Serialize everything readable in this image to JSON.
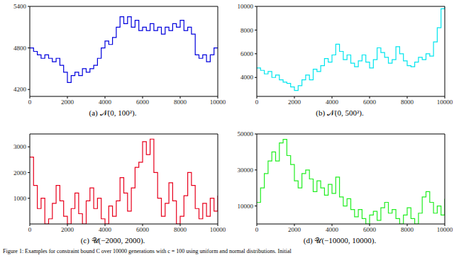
{
  "caption": "Figure 1: Examples for constraint bound C over 10000 generations with c = 100 using uniform and normal distributions. Initial",
  "chart_data": [
    {
      "type": "line",
      "title": "(a) 𝒩(0, 100²).",
      "color": "#0000dd",
      "line_style": "step",
      "xlim": [
        0,
        10000
      ],
      "xticks": [
        0,
        2000,
        4000,
        6000,
        8000,
        10000
      ],
      "ylim": [
        4100,
        5400
      ],
      "yticks": [
        4200,
        4800,
        5400
      ],
      "x": [
        0,
        200,
        400,
        600,
        800,
        1000,
        1200,
        1400,
        1600,
        1800,
        2000,
        2200,
        2400,
        2600,
        2800,
        3000,
        3200,
        3400,
        3600,
        3800,
        4000,
        4200,
        4400,
        4600,
        4800,
        5000,
        5200,
        5400,
        5600,
        5800,
        6000,
        6200,
        6400,
        6600,
        6800,
        7000,
        7200,
        7400,
        7600,
        7800,
        8000,
        8200,
        8400,
        8600,
        8800,
        9000,
        9200,
        9400,
        9600,
        9800,
        10000
      ],
      "values": [
        4800,
        4750,
        4700,
        4650,
        4700,
        4650,
        4600,
        4650,
        4550,
        4450,
        4300,
        4400,
        4450,
        4400,
        4500,
        4450,
        4500,
        4550,
        4650,
        4800,
        4900,
        4850,
        4950,
        5100,
        5250,
        5150,
        5250,
        5100,
        5200,
        5050,
        5100,
        5050,
        5150,
        5050,
        5100,
        5000,
        5100,
        5050,
        5150,
        5100,
        5200,
        5050,
        5100,
        5000,
        4700,
        4650,
        4700,
        4600,
        4700,
        4800,
        4800
      ]
    },
    {
      "type": "line",
      "title": "(b) 𝒩(0, 500²).",
      "color": "#00e5ee",
      "line_style": "step",
      "xlim": [
        0,
        10000
      ],
      "xticks": [
        0,
        2000,
        4000,
        6000,
        8000,
        10000
      ],
      "ylim": [
        2400,
        10000
      ],
      "yticks": [
        4000,
        6000,
        8000,
        10000
      ],
      "x": [
        0,
        200,
        400,
        600,
        800,
        1000,
        1200,
        1400,
        1600,
        1800,
        2000,
        2200,
        2400,
        2600,
        2800,
        3000,
        3200,
        3400,
        3600,
        3800,
        4000,
        4200,
        4400,
        4600,
        4800,
        5000,
        5200,
        5400,
        5600,
        5800,
        6000,
        6200,
        6400,
        6600,
        6800,
        7000,
        7200,
        7400,
        7600,
        7800,
        8000,
        8200,
        8400,
        8600,
        8800,
        9000,
        9200,
        9400,
        9600,
        9800,
        10000
      ],
      "values": [
        4800,
        4600,
        4300,
        4500,
        4000,
        4200,
        3800,
        3600,
        3500,
        3200,
        2900,
        3300,
        3800,
        4200,
        3800,
        4700,
        4500,
        5000,
        5600,
        5300,
        5900,
        6800,
        6200,
        5500,
        5900,
        5200,
        4900,
        5400,
        5900,
        5300,
        4800,
        5500,
        6500,
        6100,
        5700,
        5200,
        5500,
        6600,
        6000,
        5400,
        5000,
        4900,
        5300,
        5700,
        5500,
        6000,
        5800,
        7000,
        8200,
        9800,
        10000
      ]
    },
    {
      "type": "line",
      "title": "(c) 𝒰(−2000, 2000).",
      "color": "#e8001c",
      "line_style": "step",
      "xlim": [
        0,
        10000
      ],
      "xticks": [
        0,
        2000,
        4000,
        6000,
        8000,
        10000
      ],
      "ylim": [
        0,
        3500
      ],
      "yticks": [
        1000,
        2000,
        3000
      ],
      "x": [
        0,
        200,
        400,
        600,
        800,
        1000,
        1200,
        1400,
        1600,
        1800,
        2000,
        2200,
        2400,
        2600,
        2800,
        3000,
        3200,
        3400,
        3600,
        3800,
        4000,
        4200,
        4400,
        4600,
        4800,
        5000,
        5200,
        5400,
        5600,
        5800,
        6000,
        6200,
        6400,
        6600,
        6800,
        7000,
        7200,
        7400,
        7600,
        7800,
        8000,
        8200,
        8400,
        8600,
        8800,
        9000,
        9200,
        9400,
        9600,
        9800,
        10000
      ],
      "values": [
        2600,
        1500,
        600,
        1000,
        0,
        200,
        800,
        1500,
        900,
        300,
        0,
        600,
        1200,
        400,
        0,
        900,
        1400,
        600,
        1000,
        200,
        0,
        700,
        300,
        900,
        1800,
        1200,
        500,
        1400,
        2200,
        2400,
        3200,
        2700,
        3300,
        2000,
        1000,
        300,
        800,
        1600,
        900,
        0,
        300,
        1100,
        2000,
        1500,
        600,
        200,
        800,
        300,
        1000,
        500,
        1100
      ]
    },
    {
      "type": "line",
      "title": "(d) 𝒰(−10000, 10000).",
      "color": "#22ee22",
      "line_style": "step",
      "xlim": [
        0,
        10000
      ],
      "xticks": [
        0,
        2000,
        4000,
        6000,
        8000,
        10000
      ],
      "ylim": [
        0,
        50000
      ],
      "yticks": [
        10000,
        30000,
        50000
      ],
      "x": [
        0,
        200,
        400,
        600,
        800,
        1000,
        1200,
        1400,
        1600,
        1800,
        2000,
        2200,
        2400,
        2600,
        2800,
        3000,
        3200,
        3400,
        3600,
        3800,
        4000,
        4200,
        4400,
        4600,
        4800,
        5000,
        5200,
        5400,
        5600,
        5800,
        6000,
        6200,
        6400,
        6600,
        6800,
        7000,
        7200,
        7400,
        7600,
        7800,
        8000,
        8200,
        8400,
        8600,
        8800,
        9000,
        9200,
        9400,
        9600,
        9800,
        10000
      ],
      "values": [
        12000,
        20000,
        28000,
        35000,
        40000,
        35000,
        45000,
        47000,
        38000,
        33000,
        24000,
        20000,
        28000,
        30000,
        25000,
        18000,
        24000,
        20000,
        16000,
        22000,
        17000,
        26000,
        15000,
        10000,
        14000,
        8000,
        4000,
        8000,
        3000,
        0,
        5000,
        7000,
        2000,
        9000,
        12000,
        6000,
        8000,
        3000,
        0,
        5000,
        9000,
        3000,
        0,
        6000,
        15000,
        18000,
        12000,
        6000,
        10000,
        5000,
        14000
      ]
    }
  ]
}
